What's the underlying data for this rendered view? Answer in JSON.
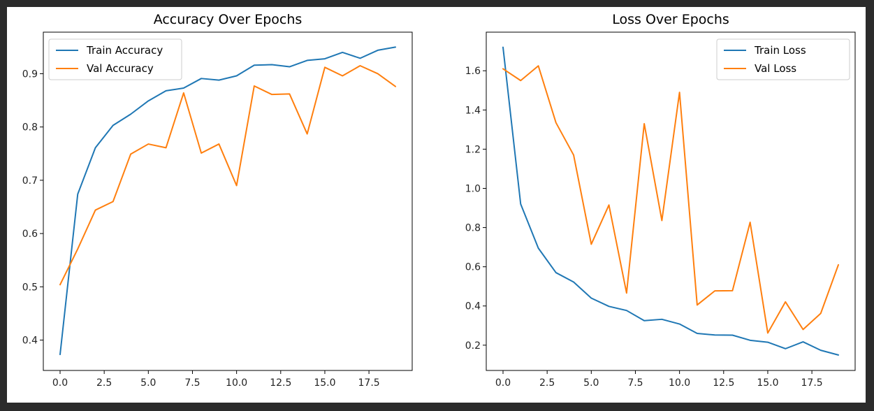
{
  "colors": {
    "series_0": "#1f77b4",
    "series_1": "#ff7f0e"
  },
  "chart_data": [
    {
      "type": "line",
      "title": "Accuracy Over Epochs",
      "xlabel": "",
      "ylabel": "",
      "xlim": [
        -0.95,
        19.95
      ],
      "ylim": [
        0.343,
        0.978
      ],
      "xticks": [
        0,
        2.5,
        5,
        7.5,
        10,
        12.5,
        15,
        17.5
      ],
      "xtick_labels": [
        "0.0",
        "2.5",
        "5.0",
        "7.5",
        "10.0",
        "12.5",
        "15.0",
        "17.5"
      ],
      "yticks": [
        0.4,
        0.5,
        0.6,
        0.7,
        0.8,
        0.9
      ],
      "ytick_labels": [
        "0.4",
        "0.5",
        "0.6",
        "0.7",
        "0.8",
        "0.9"
      ],
      "legend_position": "upper-left",
      "grid": false,
      "x": [
        0,
        1,
        2,
        3,
        4,
        5,
        6,
        7,
        8,
        9,
        10,
        11,
        12,
        13,
        14,
        15,
        16,
        17,
        18,
        19
      ],
      "series": [
        {
          "name": "Train Accuracy",
          "values": [
            0.373,
            0.674,
            0.761,
            0.803,
            0.824,
            0.849,
            0.868,
            0.873,
            0.891,
            0.888,
            0.896,
            0.916,
            0.917,
            0.913,
            0.925,
            0.928,
            0.94,
            0.929,
            0.944,
            0.95
          ]
        },
        {
          "name": "Val Accuracy",
          "values": [
            0.504,
            0.571,
            0.644,
            0.66,
            0.749,
            0.768,
            0.761,
            0.864,
            0.751,
            0.768,
            0.69,
            0.877,
            0.861,
            0.862,
            0.787,
            0.912,
            0.896,
            0.915,
            0.9,
            0.876
          ]
        }
      ]
    },
    {
      "type": "line",
      "title": "Loss Over Epochs",
      "xlabel": "",
      "ylabel": "",
      "xlim": [
        -0.95,
        19.95
      ],
      "ylim": [
        0.071,
        1.797
      ],
      "xticks": [
        0,
        2.5,
        5,
        7.5,
        10,
        12.5,
        15,
        17.5
      ],
      "xtick_labels": [
        "0.0",
        "2.5",
        "5.0",
        "7.5",
        "10.0",
        "12.5",
        "15.0",
        "17.5"
      ],
      "yticks": [
        0.2,
        0.4,
        0.6,
        0.8,
        1.0,
        1.2,
        1.4,
        1.6
      ],
      "ytick_labels": [
        "0.2",
        "0.4",
        "0.6",
        "0.8",
        "1.0",
        "1.2",
        "1.4",
        "1.6"
      ],
      "legend_position": "upper-right",
      "grid": false,
      "x": [
        0,
        1,
        2,
        3,
        4,
        5,
        6,
        7,
        8,
        9,
        10,
        11,
        12,
        13,
        14,
        15,
        16,
        17,
        18,
        19
      ],
      "series": [
        {
          "name": "Train Loss",
          "values": [
            1.72,
            0.92,
            0.695,
            0.57,
            0.522,
            0.44,
            0.398,
            0.377,
            0.325,
            0.332,
            0.308,
            0.26,
            0.252,
            0.251,
            0.225,
            0.215,
            0.182,
            0.217,
            0.174,
            0.15
          ]
        },
        {
          "name": "Val Loss",
          "values": [
            1.61,
            1.55,
            1.625,
            1.335,
            1.17,
            0.715,
            0.915,
            0.466,
            1.33,
            0.836,
            1.49,
            0.405,
            0.477,
            0.478,
            0.827,
            0.262,
            0.421,
            0.28,
            0.362,
            0.61
          ]
        }
      ]
    }
  ]
}
